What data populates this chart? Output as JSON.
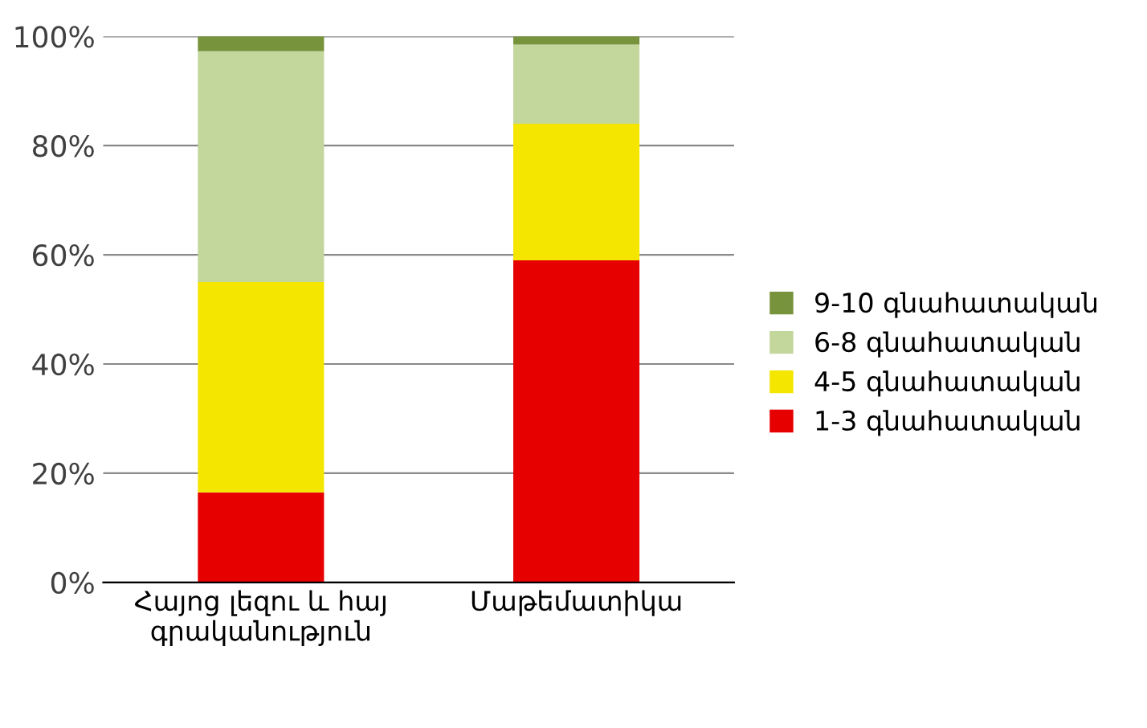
{
  "chart_data": {
    "type": "bar",
    "stacked": true,
    "categories": [
      "Հայոց լեզու և հայ\nգրականություն",
      "Մաթեմատիկա"
    ],
    "series": [
      {
        "name": "1-3 գնահատական",
        "color": "#e60000",
        "values": [
          16.5,
          59
        ]
      },
      {
        "name": "4-5 գնահատական",
        "color": "#f5e600",
        "values": [
          38.5,
          25
        ]
      },
      {
        "name": "6-8 գնահատական",
        "color": "#c3d69b",
        "values": [
          42.3,
          14.5
        ]
      },
      {
        "name": "9-10 գնահատական",
        "color": "#77933c",
        "values": [
          2.7,
          1.5
        ]
      }
    ],
    "ylim": [
      0,
      100
    ],
    "yticks": [
      {
        "value": 0,
        "label": "0%"
      },
      {
        "value": 20,
        "label": "20%"
      },
      {
        "value": 40,
        "label": "40%"
      },
      {
        "value": 60,
        "label": "60%"
      },
      {
        "value": 80,
        "label": "80%"
      },
      {
        "value": 100,
        "label": "100%"
      }
    ],
    "grid": "y",
    "legend": "right"
  }
}
